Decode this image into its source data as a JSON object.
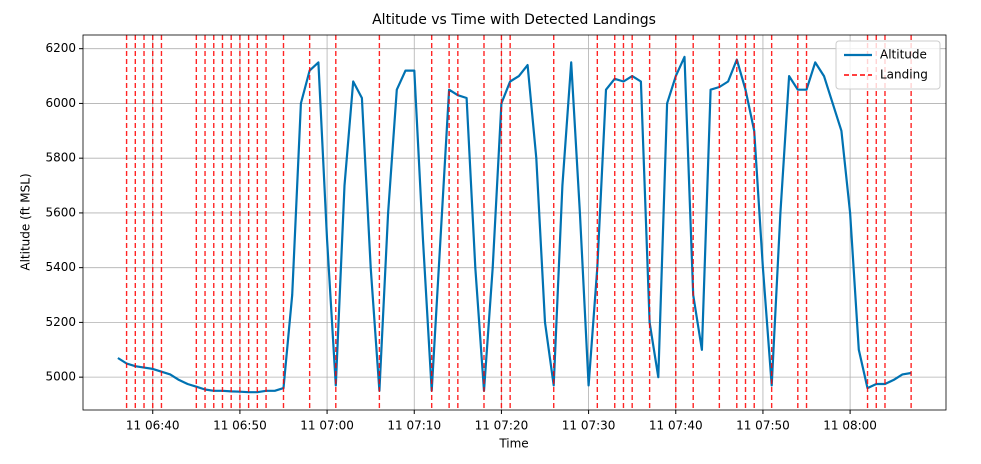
{
  "chart_data": {
    "type": "line",
    "title": "Altitude vs Time with Detected Landings",
    "xlabel": "Time",
    "ylabel": "Altitude (ft MSL)",
    "x": [
      "11 06:36",
      "11 06:37",
      "11 06:38",
      "11 06:39",
      "11 06:40",
      "11 06:41",
      "11 06:42",
      "11 06:43",
      "11 06:44",
      "11 06:45",
      "11 06:46",
      "11 06:47",
      "11 06:48",
      "11 06:49",
      "11 06:50",
      "11 06:51",
      "11 06:52",
      "11 06:53",
      "11 06:54",
      "11 06:55",
      "11 06:56",
      "11 06:57",
      "11 06:58",
      "11 06:59",
      "11 07:00",
      "11 07:01",
      "11 07:02",
      "11 07:03",
      "11 07:04",
      "11 07:05",
      "11 07:06",
      "11 07:07",
      "11 07:08",
      "11 07:09",
      "11 07:10",
      "11 07:11",
      "11 07:12",
      "11 07:13",
      "11 07:14",
      "11 07:15",
      "11 07:16",
      "11 07:17",
      "11 07:18",
      "11 07:19",
      "11 07:20",
      "11 07:21",
      "11 07:22",
      "11 07:23",
      "11 07:24",
      "11 07:25",
      "11 07:26",
      "11 07:27",
      "11 07:28",
      "11 07:29",
      "11 07:30",
      "11 07:31",
      "11 07:32",
      "11 07:33",
      "11 07:34",
      "11 07:35",
      "11 07:36",
      "11 07:37",
      "11 07:38",
      "11 07:39",
      "11 07:40",
      "11 07:41",
      "11 07:42",
      "11 07:43",
      "11 07:44",
      "11 07:45",
      "11 07:46",
      "11 07:47",
      "11 07:48",
      "11 07:49",
      "11 07:50",
      "11 07:51",
      "11 07:52",
      "11 07:53",
      "11 07:54",
      "11 07:55",
      "11 07:56",
      "11 07:57",
      "11 07:58",
      "11 07:59",
      "11 08:00",
      "11 08:01",
      "11 08:02",
      "11 08:03",
      "11 08:04",
      "11 08:05",
      "11 08:06",
      "11 08:07"
    ],
    "series": [
      {
        "name": "Altitude",
        "color": "#0072b2",
        "values": [
          5070,
          5050,
          5040,
          5035,
          5030,
          5020,
          5010,
          4990,
          4975,
          4965,
          4955,
          4950,
          4950,
          4948,
          4947,
          4945,
          4945,
          4950,
          4950,
          4960,
          5300,
          6000,
          6120,
          6150,
          5500,
          4970,
          5700,
          6080,
          6020,
          5400,
          4950,
          5600,
          6050,
          6120,
          6120,
          5500,
          4950,
          5500,
          6050,
          6030,
          6020,
          5400,
          4950,
          5400,
          6000,
          6080,
          6100,
          6140,
          5800,
          5200,
          4970,
          5700,
          6150,
          5600,
          4970,
          5400,
          6050,
          6090,
          6080,
          6100,
          6080,
          5200,
          5000,
          6000,
          6100,
          6170,
          5300,
          5100,
          6050,
          6060,
          6080,
          6160,
          6050,
          5900,
          5400,
          4970,
          5600,
          6100,
          6050,
          6050,
          6150,
          6100,
          6000,
          5900,
          5600,
          5100,
          4960,
          4975,
          4975,
          4990,
          5010,
          5015
        ]
      }
    ],
    "landings": {
      "name": "Landing",
      "color": "#ff0000",
      "x": [
        "11 06:37",
        "11 06:38",
        "11 06:39",
        "11 06:40",
        "11 06:41",
        "11 06:45",
        "11 06:46",
        "11 06:47",
        "11 06:48",
        "11 06:49",
        "11 06:50",
        "11 06:51",
        "11 06:52",
        "11 06:53",
        "11 06:55",
        "11 06:58",
        "11 07:01",
        "11 07:06",
        "11 07:12",
        "11 07:14",
        "11 07:15",
        "11 07:18",
        "11 07:20",
        "11 07:21",
        "11 07:26",
        "11 07:31",
        "11 07:33",
        "11 07:34",
        "11 07:35",
        "11 07:37",
        "11 07:40",
        "11 07:42",
        "11 07:45",
        "11 07:47",
        "11 07:48",
        "11 07:49",
        "11 07:51",
        "11 07:54",
        "11 07:55",
        "11 08:02",
        "11 08:03",
        "11 08:04",
        "11 08:07"
      ]
    },
    "xlim": [
      "11 06:32",
      "11 08:11"
    ],
    "xticks": [
      "11 06:40",
      "11 06:50",
      "11 07:00",
      "11 07:10",
      "11 07:20",
      "11 07:30",
      "11 07:40",
      "11 07:50",
      "11 08:00"
    ],
    "ylim": [
      4880,
      6250
    ],
    "yticks": [
      5000,
      5200,
      5400,
      5600,
      5800,
      6000,
      6200
    ],
    "grid": true,
    "legend": "upper right"
  }
}
